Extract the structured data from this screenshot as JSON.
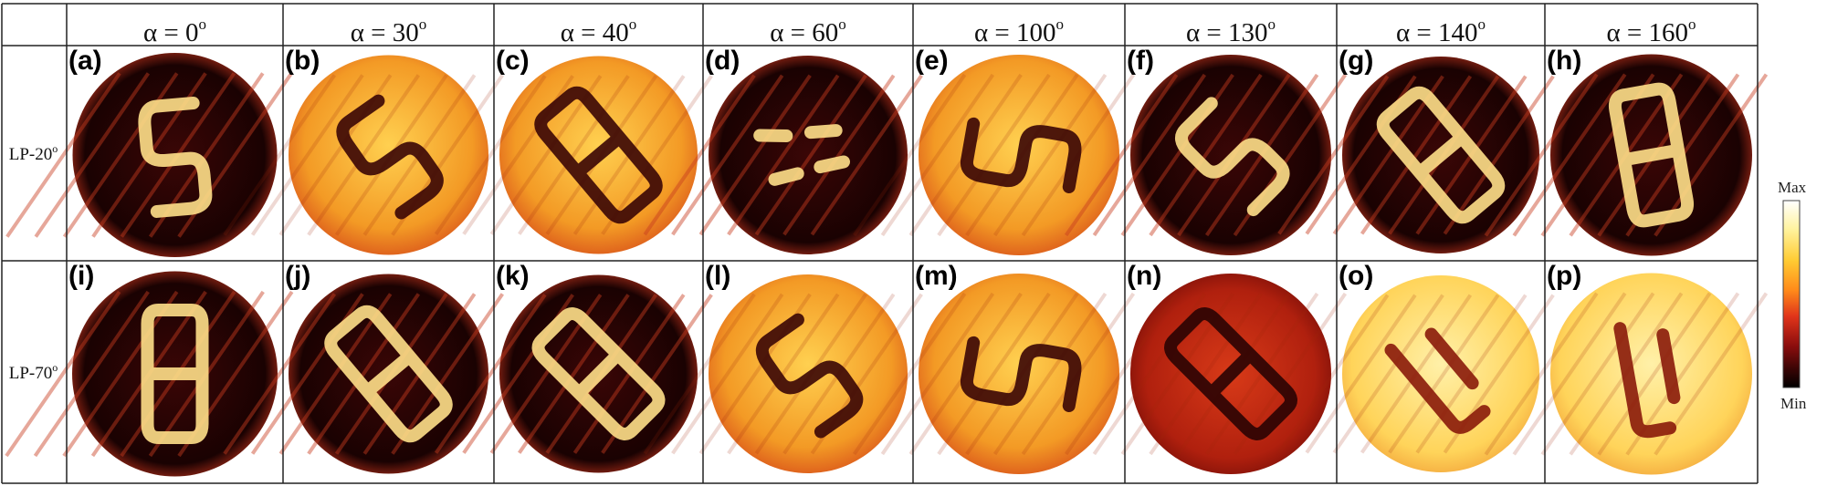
{
  "columns": [
    {
      "prefix": "α = ",
      "angle": "0",
      "deg": "o"
    },
    {
      "prefix": "α = ",
      "angle": "30",
      "deg": "o"
    },
    {
      "prefix": "α = ",
      "angle": "40",
      "deg": "o"
    },
    {
      "prefix": "α = ",
      "angle": "60",
      "deg": "o"
    },
    {
      "prefix": "α = ",
      "angle": "100",
      "deg": "o"
    },
    {
      "prefix": "α = ",
      "angle": "130",
      "deg": "o"
    },
    {
      "prefix": "α = ",
      "angle": "140",
      "deg": "o"
    },
    {
      "prefix": "α = ",
      "angle": "160",
      "deg": "o"
    }
  ],
  "rows": [
    {
      "label": "LP-20",
      "deg": "o",
      "panels": [
        "(a)",
        "(b)",
        "(c)",
        "(d)",
        "(e)",
        "(f)",
        "(g)",
        "(h)"
      ]
    },
    {
      "label": "LP-70",
      "deg": "o",
      "panels": [
        "(i)",
        "(j)",
        "(k)",
        "(l)",
        "(m)",
        "(n)",
        "(o)",
        "(p)"
      ]
    }
  ],
  "colorbar": {
    "max_label": "Max",
    "min_label": "Min",
    "colors": [
      "#ffffff",
      "#fff3a0",
      "#ffcc33",
      "#ff8a1a",
      "#e0341a",
      "#8a0d0d",
      "#3a0505",
      "#000000"
    ]
  },
  "panels": [
    {
      "id": "a",
      "background": "dark",
      "shape": "S"
    },
    {
      "id": "b",
      "background": "bright",
      "shape": "S"
    },
    {
      "id": "c",
      "background": "bright",
      "shape": "8"
    },
    {
      "id": "d",
      "background": "dark",
      "shape": "dashes"
    },
    {
      "id": "e",
      "background": "bright",
      "shape": "S"
    },
    {
      "id": "f",
      "background": "dark",
      "shape": "S"
    },
    {
      "id": "g",
      "background": "dark",
      "shape": "8"
    },
    {
      "id": "h",
      "background": "dark",
      "shape": "8"
    },
    {
      "id": "i",
      "background": "dark",
      "shape": "8"
    },
    {
      "id": "j",
      "background": "dark",
      "shape": "8"
    },
    {
      "id": "k",
      "background": "dark",
      "shape": "8"
    },
    {
      "id": "l",
      "background": "bright",
      "shape": "S"
    },
    {
      "id": "m",
      "background": "bright",
      "shape": "S"
    },
    {
      "id": "n",
      "background": "medium",
      "shape": "8"
    },
    {
      "id": "o",
      "background": "pale",
      "shape": "U"
    },
    {
      "id": "p",
      "background": "pale",
      "shape": "U"
    }
  ]
}
